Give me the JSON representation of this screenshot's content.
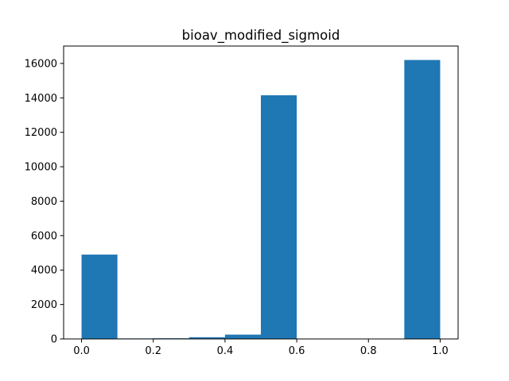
{
  "chart_data": {
    "type": "bar",
    "title": "bioav_modified_sigmoid",
    "xlabel": "",
    "ylabel": "",
    "bins": [
      {
        "x0": 0.0,
        "x1": 0.1,
        "count": 4900
      },
      {
        "x0": 0.1,
        "x1": 0.2,
        "count": 30
      },
      {
        "x0": 0.2,
        "x1": 0.3,
        "count": 40
      },
      {
        "x0": 0.3,
        "x1": 0.4,
        "count": 100
      },
      {
        "x0": 0.4,
        "x1": 0.5,
        "count": 250
      },
      {
        "x0": 0.5,
        "x1": 0.6,
        "count": 14150
      },
      {
        "x0": 0.6,
        "x1": 0.7,
        "count": 0
      },
      {
        "x0": 0.7,
        "x1": 0.8,
        "count": 0
      },
      {
        "x0": 0.8,
        "x1": 0.9,
        "count": 0
      },
      {
        "x0": 0.9,
        "x1": 1.0,
        "count": 16200
      }
    ],
    "xlim": [
      -0.05,
      1.05
    ],
    "ylim": [
      0,
      17010
    ],
    "xticks": [
      0.0,
      0.2,
      0.4,
      0.6,
      0.8,
      1.0
    ],
    "xtick_labels": [
      "0.0",
      "0.2",
      "0.4",
      "0.6",
      "0.8",
      "1.0"
    ],
    "yticks": [
      0,
      2000,
      4000,
      6000,
      8000,
      10000,
      12000,
      14000,
      16000
    ],
    "ytick_labels": [
      "0",
      "2000",
      "4000",
      "6000",
      "8000",
      "10000",
      "12000",
      "14000",
      "16000"
    ],
    "bar_color": "#1f77b4",
    "grid": false,
    "legend": "none"
  }
}
